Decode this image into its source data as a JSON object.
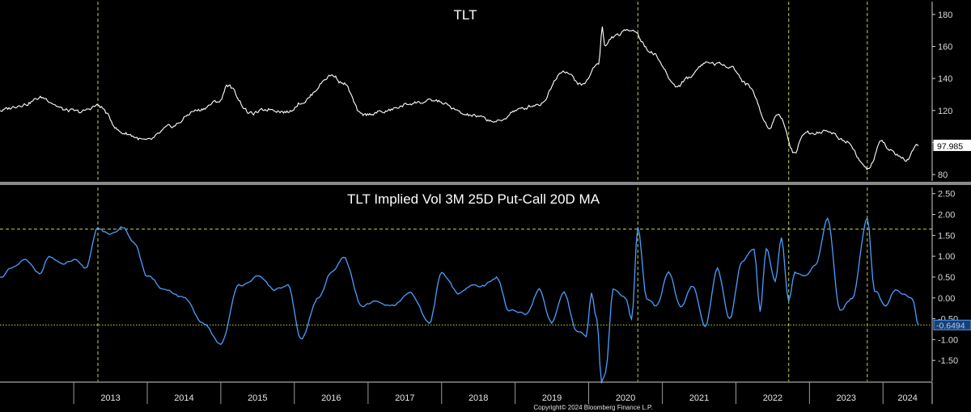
{
  "copyright": "Copyright© 2024 Bloomberg Finance L.P.",
  "chart_data": [
    {
      "type": "line",
      "title": "TLT",
      "series_color": "#ffffff",
      "ylim": [
        76,
        188
      ],
      "yticks": [
        80,
        100,
        120,
        140,
        160,
        180
      ],
      "last_value_label": "97.985",
      "last_value": 97.985,
      "vertical_markers": [
        "2013-05-01",
        "2020-09-01",
        "2022-09-20",
        "2023-10-15"
      ],
      "x": [
        "2012-01-01",
        "2012-05-01",
        "2012-07-25",
        "2012-12-01",
        "2013-02-01",
        "2013-05-01",
        "2013-09-01",
        "2013-12-31",
        "2014-05-01",
        "2014-09-01",
        "2014-12-31",
        "2015-01-30",
        "2015-06-01",
        "2015-09-01",
        "2015-12-01",
        "2016-02-01",
        "2016-07-08",
        "2016-09-01",
        "2016-12-01",
        "2017-03-01",
        "2017-09-01",
        "2017-12-01",
        "2018-05-15",
        "2018-10-15",
        "2019-01-01",
        "2019-05-01",
        "2019-08-28",
        "2019-12-01",
        "2020-02-20",
        "2020-03-09",
        "2020-03-20",
        "2020-05-01",
        "2020-08-04",
        "2020-11-01",
        "2021-03-18",
        "2021-05-01",
        "2021-08-04",
        "2021-12-01",
        "2022-03-01",
        "2022-06-14",
        "2022-08-01",
        "2022-10-21",
        "2022-12-01",
        "2023-04-05",
        "2023-07-01",
        "2023-10-19",
        "2023-12-27",
        "2024-02-01",
        "2024-04-25",
        "2024-06-25"
      ],
      "y": [
        120,
        124,
        128,
        120,
        119,
        123,
        106,
        101,
        110,
        120,
        126,
        136,
        118,
        121,
        119,
        125,
        142,
        137,
        117,
        119,
        125,
        126,
        117,
        113,
        120,
        124,
        145,
        136,
        150,
        172,
        160,
        166,
        171,
        157,
        135,
        140,
        150,
        148,
        136,
        110,
        118,
        93,
        106,
        107,
        101,
        83,
        101,
        95,
        89,
        97.985
      ]
    },
    {
      "type": "line",
      "title": "TLT Implied Vol 3M 25D Put-Call 20D MA",
      "series_color": "#4a9eff",
      "ylim": [
        -2.0,
        2.65
      ],
      "yticks": [
        2.5,
        2.0,
        1.5,
        1.0,
        0.5,
        0.0,
        -0.5,
        -1.0,
        -1.5
      ],
      "ytick_labels": [
        "2.50",
        "2.00",
        "1.50",
        "1.00",
        "0.50",
        "0.00",
        "-0.50",
        "-1.00",
        "-1.50"
      ],
      "hline_upper": 1.65,
      "hline_lower": -0.6494,
      "last_value_label": "-0.6494",
      "last_value": -0.6494,
      "vertical_markers": [
        "2013-05-01",
        "2020-09-01",
        "2022-09-20",
        "2023-10-15"
      ],
      "x": [
        "2012-01-01",
        "2012-03-01",
        "2012-05-01",
        "2012-07-15",
        "2012-09-01",
        "2012-11-01",
        "2013-01-01",
        "2013-03-01",
        "2013-05-01",
        "2013-07-01",
        "2013-09-01",
        "2013-11-01",
        "2014-01-01",
        "2014-04-01",
        "2014-07-01",
        "2014-10-01",
        "2015-01-01",
        "2015-04-01",
        "2015-07-01",
        "2015-10-01",
        "2015-12-01",
        "2016-02-01",
        "2016-05-01",
        "2016-07-01",
        "2016-09-01",
        "2016-12-01",
        "2017-02-01",
        "2017-05-01",
        "2017-08-01",
        "2017-11-01",
        "2018-01-01",
        "2018-04-01",
        "2018-06-01",
        "2018-08-01",
        "2018-10-01",
        "2018-12-01",
        "2019-03-01",
        "2019-05-01",
        "2019-07-01",
        "2019-09-01",
        "2019-11-01",
        "2019-12-20",
        "2020-01-15",
        "2020-02-10",
        "2020-03-05",
        "2020-03-25",
        "2020-05-01",
        "2020-07-01",
        "2020-08-01",
        "2020-09-01",
        "2020-10-15",
        "2020-12-01",
        "2021-02-01",
        "2021-04-01",
        "2021-06-01",
        "2021-08-01",
        "2021-10-01",
        "2021-12-01",
        "2022-02-01",
        "2022-04-01",
        "2022-05-01",
        "2022-06-01",
        "2022-07-15",
        "2022-08-15",
        "2022-09-20",
        "2022-10-20",
        "2022-12-01",
        "2023-02-01",
        "2023-04-01",
        "2023-06-01",
        "2023-08-01",
        "2023-10-15",
        "2023-11-20",
        "2024-01-15",
        "2024-03-01",
        "2024-04-15",
        "2024-05-25",
        "2024-06-25"
      ],
      "y": [
        0.5,
        0.7,
        0.9,
        0.6,
        1.0,
        0.8,
        0.9,
        0.7,
        1.7,
        1.5,
        1.7,
        1.3,
        0.5,
        0.2,
        0.0,
        -0.6,
        -1.1,
        0.3,
        0.5,
        0.2,
        0.3,
        -1.0,
        0.0,
        0.6,
        1.0,
        -0.2,
        -0.1,
        -0.2,
        0.1,
        -0.6,
        0.6,
        0.1,
        0.3,
        0.3,
        0.5,
        -0.3,
        -0.4,
        0.2,
        -0.6,
        0.1,
        -0.8,
        -0.9,
        0.1,
        -0.5,
        -2.0,
        -1.8,
        0.2,
        0.0,
        -0.5,
        1.7,
        0.0,
        -0.2,
        0.6,
        -0.2,
        0.3,
        -0.7,
        0.7,
        -0.5,
        0.9,
        1.2,
        -0.3,
        1.2,
        0.4,
        1.4,
        -0.1,
        0.6,
        0.5,
        0.8,
        1.9,
        -0.3,
        0.0,
        1.9,
        0.2,
        -0.2,
        0.2,
        0.1,
        0.0,
        -0.6494
      ]
    }
  ],
  "x_axis": {
    "labels": [
      "2013",
      "2014",
      "2015",
      "2016",
      "2017",
      "2018",
      "2019",
      "2020",
      "2021",
      "2022",
      "2023",
      "2024"
    ]
  }
}
